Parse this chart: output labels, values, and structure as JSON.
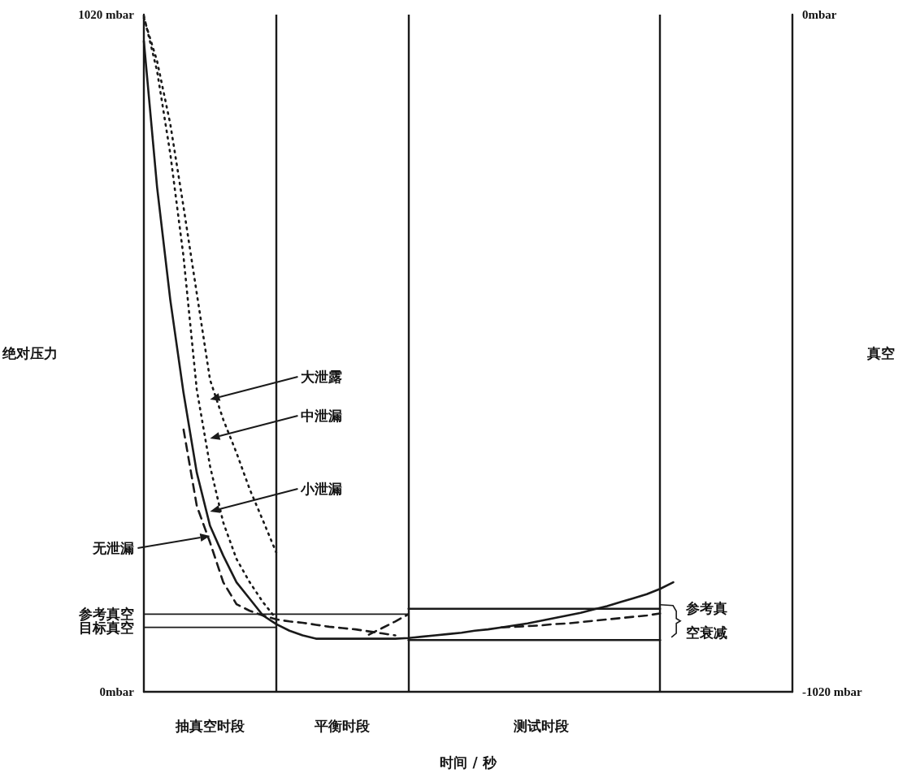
{
  "chart_data": {
    "type": "line",
    "xlabel": "时间 / 秒",
    "ylabel": "绝对压力",
    "y2label": "真空",
    "categories": [
      null,
      null,
      null,
      null,
      null,
      null,
      null,
      null,
      null,
      null,
      null,
      null,
      null,
      null,
      null,
      null,
      null,
      null,
      null,
      null,
      null,
      null,
      null,
      null,
      null,
      null,
      null,
      null,
      null,
      null,
      null,
      null,
      null,
      null,
      null,
      null,
      null,
      null,
      null,
      null,
      null,
      null,
      null,
      null,
      null,
      null,
      null,
      null,
      null,
      null
    ],
    "ylim": [
      0,
      1020
    ],
    "yticks": [
      {
        "value": 0,
        "label": "0mbar"
      },
      {
        "value": 1020,
        "label": "1020 mbar"
      }
    ],
    "y2lim": [
      -1020,
      0
    ],
    "y2ticks": [
      {
        "value": -1020,
        "label": "-1020 mbar"
      },
      {
        "value": 0,
        "label": "0mbar"
      }
    ],
    "tick_labels": "y",
    "grid": false,
    "marker": "none",
    "series": [
      {
        "color": "#1a1a1a",
        "line_style": "dotted",
        "values": [
          1015,
          950,
          855,
          730,
          600,
          470,
          410,
          360,
          305,
          258,
          210,
          null,
          null,
          null,
          null,
          null,
          null,
          null,
          null,
          null,
          null,
          null,
          null,
          null,
          null,
          null,
          null,
          null,
          null,
          null,
          null,
          null,
          null,
          null,
          null,
          null,
          null,
          null,
          null,
          null,
          null,
          null,
          null,
          null,
          null,
          null,
          null,
          null,
          null,
          null
        ]
      },
      {
        "color": "#1a1a1a",
        "line_style": "dotted",
        "values": [
          1018,
          935,
          810,
          655,
          455,
          340,
          255,
          200,
          165,
          135,
          110,
          null,
          null,
          null,
          null,
          null,
          null,
          null,
          null,
          null,
          null,
          null,
          null,
          null,
          null,
          null,
          null,
          null,
          null,
          null,
          null,
          null,
          null,
          null,
          null,
          null,
          null,
          null,
          null,
          null,
          null,
          null,
          null,
          null,
          null,
          null,
          null,
          null,
          null,
          null
        ]
      },
      {
        "color": "#1a1a1a",
        "line_style": "solid",
        "values": [
          980,
          760,
          590,
          450,
          330,
          250,
          205,
          165,
          140,
          115,
          102,
          92,
          85,
          80,
          80,
          80,
          80,
          80,
          80,
          80,
          81,
          83,
          85,
          87,
          89,
          92,
          94,
          97,
          100,
          103,
          107,
          111,
          115,
          119,
          124,
          129,
          135,
          141,
          147,
          155,
          165,
          null,
          null,
          null,
          null,
          null,
          null,
          null,
          null,
          null
        ]
      },
      {
        "color": "#1a1a1a",
        "line_style": "dashed",
        "values": [
          null,
          null,
          null,
          395,
          280,
          225,
          165,
          132,
          122,
          115,
          109,
          106,
          104,
          101,
          98,
          96,
          94,
          91,
          88,
          85,
          null,
          null,
          null,
          null,
          null,
          null,
          null,
          null,
          null,
          null,
          null,
          null,
          null,
          null,
          null,
          null,
          null,
          null,
          null,
          null,
          null,
          null,
          null,
          null,
          null,
          null,
          null,
          null,
          null,
          null
        ]
      },
      {
        "color": "#1a1a1a",
        "line_style": "dashed",
        "values": [
          null,
          null,
          null,
          null,
          null,
          null,
          null,
          null,
          null,
          null,
          null,
          null,
          null,
          null,
          null,
          null,
          null,
          86,
          96,
          106,
          117,
          null,
          null,
          null,
          null,
          null,
          null,
          null,
          null,
          null,
          null,
          null,
          null,
          null,
          null,
          null,
          null,
          null,
          null,
          null,
          null,
          null,
          null,
          null,
          null,
          null,
          null,
          null,
          null,
          null
        ]
      },
      {
        "color": "#1a1a1a",
        "line_style": "dashed",
        "values": [
          null,
          null,
          null,
          null,
          null,
          null,
          null,
          null,
          null,
          null,
          null,
          null,
          null,
          null,
          null,
          null,
          null,
          null,
          null,
          null,
          null,
          null,
          null,
          null,
          null,
          null,
          null,
          97,
          98,
          99,
          100,
          102,
          103,
          105,
          107,
          109,
          111,
          113,
          115,
          118,
          null,
          null,
          null,
          null,
          null,
          null,
          null,
          null,
          null,
          null
        ]
      },
      {
        "name": "参考真空",
        "color": "#1a1a1a",
        "line_style": "solid",
        "values": [
          117,
          117,
          117,
          117,
          117,
          117,
          117,
          117,
          117,
          117,
          117,
          117,
          117,
          117,
          117,
          117,
          117,
          117,
          117,
          117,
          117,
          null,
          null,
          null,
          null,
          null,
          null,
          null,
          null,
          null,
          null,
          null,
          null,
          null,
          null,
          null,
          null,
          null,
          null,
          null,
          null,
          null,
          null,
          null,
          null,
          null,
          null,
          null,
          null,
          null
        ]
      },
      {
        "name": "目标真空",
        "color": "#1a1a1a",
        "line_style": "solid",
        "values": [
          97,
          97,
          97,
          97,
          97,
          97,
          97,
          97,
          97,
          97,
          97,
          null,
          null,
          null,
          null,
          null,
          null,
          null,
          null,
          null,
          null,
          null,
          null,
          null,
          null,
          null,
          null,
          null,
          null,
          null,
          null,
          null,
          null,
          null,
          null,
          null,
          null,
          null,
          null,
          null,
          null,
          null,
          null,
          null,
          null,
          null,
          null,
          null,
          null,
          null
        ]
      },
      {
        "color": "#1a1a1a",
        "line_style": "solid",
        "values": [
          null,
          null,
          null,
          null,
          null,
          null,
          null,
          null,
          null,
          null,
          null,
          null,
          null,
          null,
          null,
          null,
          null,
          null,
          null,
          null,
          125,
          125,
          125,
          125,
          125,
          125,
          125,
          125,
          125,
          125,
          125,
          125,
          125,
          125,
          125,
          125,
          125,
          125,
          125,
          125,
          null,
          null,
          null,
          null,
          null,
          null,
          null,
          null,
          null,
          null
        ]
      },
      {
        "color": "#1a1a1a",
        "line_style": "solid",
        "values": [
          null,
          null,
          null,
          null,
          null,
          null,
          null,
          null,
          null,
          null,
          null,
          null,
          null,
          null,
          null,
          null,
          null,
          null,
          null,
          null,
          78,
          78,
          78,
          78,
          78,
          78,
          78,
          78,
          78,
          78,
          78,
          78,
          78,
          78,
          78,
          78,
          78,
          78,
          78,
          78,
          null,
          null,
          null,
          null,
          null,
          null,
          null,
          null,
          null,
          null
        ]
      }
    ],
    "annotations": [
      "抽真空时段",
      "平衡时段",
      "测试时段",
      "大泄露",
      "中泄漏",
      "小泄漏",
      "无泄漏",
      "参考真空衰减"
    ]
  }
}
